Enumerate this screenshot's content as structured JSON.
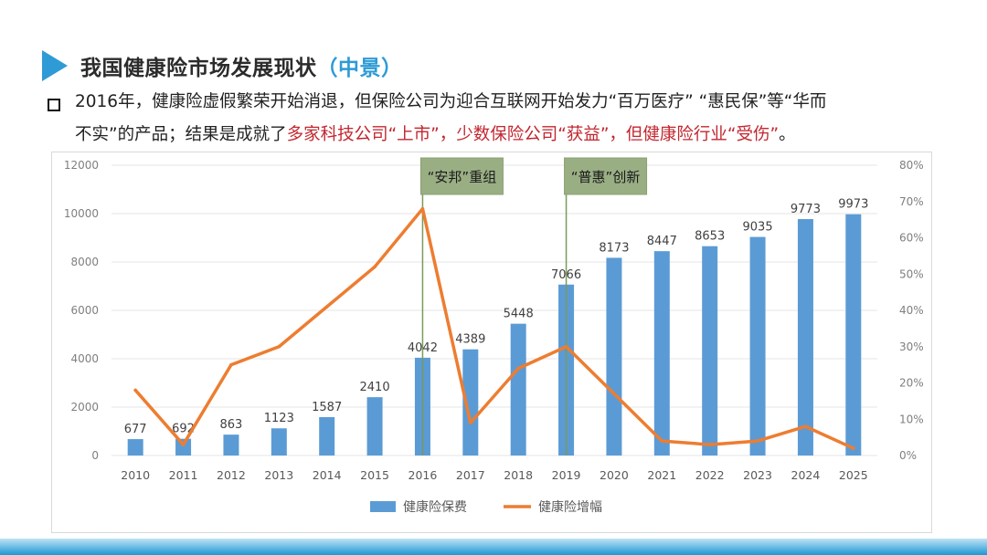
{
  "header": {
    "title_main": "我国健康险市场发展现状",
    "title_paren": "（中景）"
  },
  "bullet": {
    "part1": "2016年，健康险虚假繁荣开始消退，但保险公司为迎合互联网开始发力“百万医疗”  “惠民保”等“华而",
    "part2": "不实”的产品；结果是成就了",
    "part3_red": "多家科技公司“上市”，少数保险公司“获益”，但健康险行业“受伤”",
    "part4": "。"
  },
  "colors": {
    "accent": "#2e9bd6",
    "bar": "#5b9bd5",
    "line": "#ed7d31",
    "red_text": "#c3262f",
    "annotation_bg": "#9aae84",
    "annotation_line": "#7a9a5a"
  },
  "chart_data": {
    "type": "bar",
    "title": "",
    "categories": [
      "2010",
      "2011",
      "2012",
      "2013",
      "2014",
      "2015",
      "2016",
      "2017",
      "2018",
      "2019",
      "2020",
      "2021",
      "2022",
      "2023",
      "2024",
      "2025"
    ],
    "series": [
      {
        "name": "健康险保费",
        "type": "bar",
        "axis": "left",
        "values": [
          677,
          692,
          863,
          1123,
          1587,
          2410,
          4042,
          4389,
          5448,
          7066,
          8173,
          8447,
          8653,
          9035,
          9773,
          9973
        ]
      },
      {
        "name": "健康险增幅",
        "type": "line",
        "axis": "right",
        "values": [
          18,
          3,
          25,
          30,
          41,
          52,
          68,
          9,
          24,
          30,
          17,
          4,
          3,
          4,
          8,
          2
        ]
      }
    ],
    "y_left": {
      "min": 0,
      "max": 12000,
      "ticks": [
        "0",
        "2000",
        "4000",
        "6000",
        "8000",
        "10000",
        "12000"
      ]
    },
    "y_right": {
      "min": 0,
      "max": 80,
      "ticks": [
        "0%",
        "10%",
        "20%",
        "30%",
        "40%",
        "50%",
        "60%",
        "70%",
        "80%"
      ]
    },
    "annotations": [
      {
        "category": "2016",
        "label": "“安邦”重组"
      },
      {
        "category": "2019",
        "label": "“普惠”创新"
      }
    ],
    "legend": [
      "健康险保费",
      "健康险增幅"
    ],
    "legend_position": "bottom"
  }
}
